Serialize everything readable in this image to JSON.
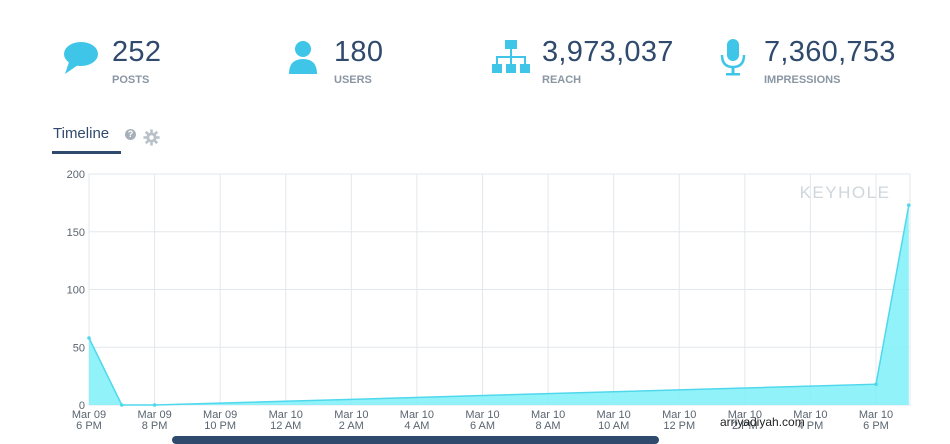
{
  "stats": [
    {
      "value": "252",
      "label": "POSTS",
      "icon": "speech-bubble-icon"
    },
    {
      "value": "180",
      "label": "USERS",
      "icon": "user-icon"
    },
    {
      "value": "3,973,037",
      "label": "REACH",
      "icon": "sitemap-icon"
    },
    {
      "value": "7,360,753",
      "label": "IMPRESSIONS",
      "icon": "microphone-icon"
    }
  ],
  "timeline": {
    "title": "Timeline",
    "help": "?"
  },
  "brand": "KEYHOLE",
  "watermark": "arriyadiyah.com",
  "colors": {
    "accent": "#3fc5e8",
    "area_fill": "#7ff0f8",
    "line": "#4fd8ec",
    "text_dark": "#2f4a6d",
    "grid": "#e3e8ec"
  },
  "chart_data": {
    "type": "area",
    "title": "",
    "xlabel": "",
    "ylabel": "",
    "ylim": [
      0,
      200
    ],
    "yticks": [
      0,
      50,
      100,
      150,
      200
    ],
    "x_tick_labels": [
      [
        "Mar 09",
        "6 PM"
      ],
      [
        "Mar 09",
        "8 PM"
      ],
      [
        "Mar 09",
        "10 PM"
      ],
      [
        "Mar 10",
        "12 AM"
      ],
      [
        "Mar 10",
        "2 AM"
      ],
      [
        "Mar 10",
        "4 AM"
      ],
      [
        "Mar 10",
        "6 AM"
      ],
      [
        "Mar 10",
        "8 AM"
      ],
      [
        "Mar 10",
        "10 AM"
      ],
      [
        "Mar 10",
        "12 PM"
      ],
      [
        "Mar 10",
        "2 PM"
      ],
      [
        "Mar 10",
        "4 PM"
      ],
      [
        "Mar 10",
        "6 PM"
      ]
    ],
    "grid": true,
    "series": [
      {
        "hours_from_first_tick": [
          0,
          1,
          2,
          24,
          25
        ],
        "x_labels": [
          "Mar 09 6 PM",
          "Mar 09 7 PM",
          "Mar 09 8 PM",
          "Mar 10 6 PM",
          "Mar 10 7 PM"
        ],
        "values": [
          58,
          0,
          0,
          18,
          173
        ]
      }
    ]
  }
}
